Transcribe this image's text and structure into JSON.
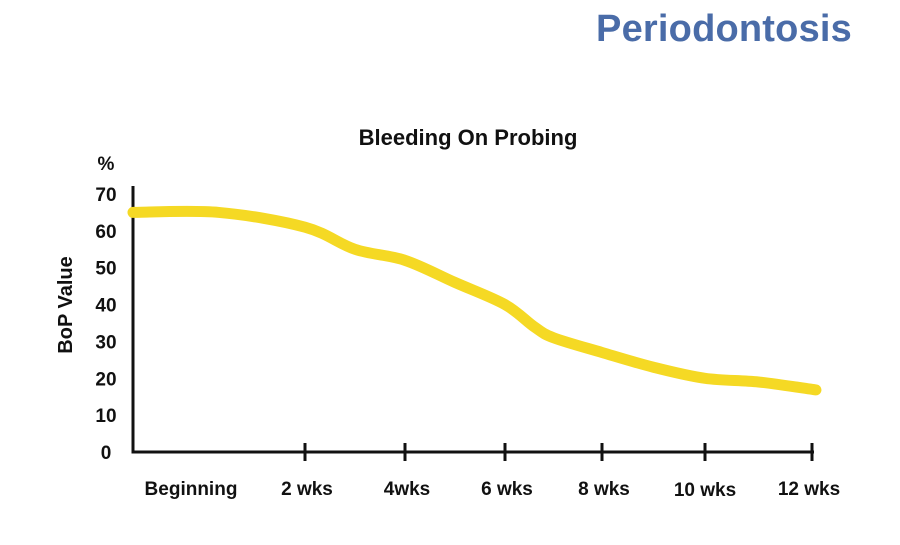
{
  "header": {
    "title": "Periodontosis"
  },
  "chart_data": {
    "type": "line",
    "title": "Bleeding On Probing",
    "ylabel": "BoP Value",
    "yunit": "%",
    "xlabel": "",
    "categories": [
      "Beginning",
      "2 wks",
      "4wks",
      "6 wks",
      "8 wks",
      "10 wks",
      "12 wks"
    ],
    "ylim": [
      0,
      70
    ],
    "yticks": [
      0,
      10,
      20,
      30,
      40,
      50,
      60,
      70
    ],
    "series": [
      {
        "x": [
          0,
          0.5,
          1,
          1.5,
          2,
          2.5,
          3,
          3.3,
          3.5,
          4,
          4.5,
          5,
          5.5,
          6,
          6.5,
          7
        ],
        "values": [
          65,
          65,
          61,
          55,
          52,
          46,
          40,
          34,
          31,
          27,
          23,
          20,
          19,
          17,
          17,
          17
        ]
      }
    ],
    "colors": {
      "line": "#f5d924",
      "axis": "#111111",
      "title": "#4a6ca8"
    },
    "grid": false
  }
}
